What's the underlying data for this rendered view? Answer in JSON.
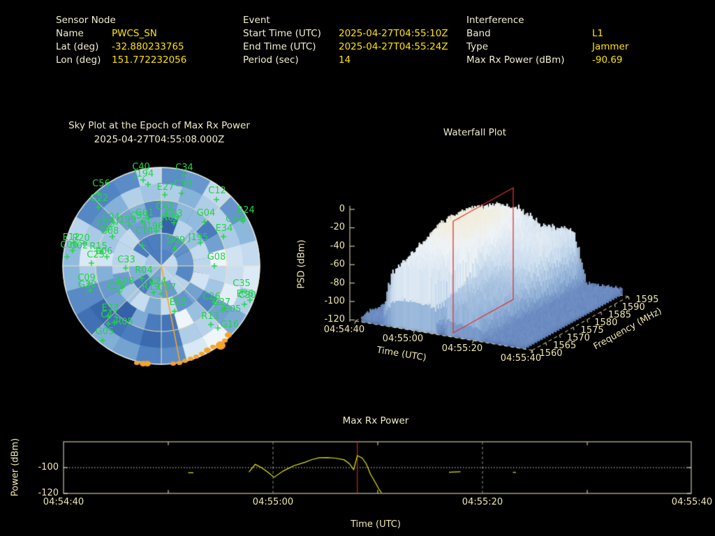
{
  "colors": {
    "background": "#000000",
    "label": "#f2efd0",
    "value": "#ffe400",
    "axis": "#efe8b0",
    "satellite_green": "#22d348",
    "jammer_orange": "#f7a426",
    "slice_red": "#e03131",
    "trace_yellow": "#e8e800",
    "grid_gray": "#8a8a8a"
  },
  "header": {
    "sensor": {
      "title": "Sensor Node",
      "rows": [
        {
          "label": "Name",
          "value": "PWCS_SN"
        },
        {
          "label": "Lat (deg)",
          "value": "-32.880233765"
        },
        {
          "label": "Lon (deg)",
          "value": "151.772232056"
        }
      ]
    },
    "event": {
      "title": "Event",
      "rows": [
        {
          "label": "Start Time (UTC)",
          "value": "2025-04-27T04:55:10Z"
        },
        {
          "label": "End Time (UTC)",
          "value": "2025-04-27T04:55:24Z"
        },
        {
          "label": "Period (sec)",
          "value": "14"
        }
      ]
    },
    "interference": {
      "title": "Interference",
      "rows": [
        {
          "label": "Band",
          "value": "L1"
        },
        {
          "label": "Type",
          "value": "Jammer"
        },
        {
          "label": "Max Rx Power (dBm)",
          "value": "-90.69"
        }
      ]
    }
  },
  "chart_data": [
    {
      "id": "skyplot",
      "type": "heatmap",
      "title": "Sky Plot at the Epoch of Max Rx Power",
      "subtitle": "2025-04-27T04:55:08.000Z",
      "elevation_rings_deg": [
        0,
        30,
        60,
        90
      ],
      "azimuth_spokes_deg": 45,
      "satellites": [
        [
          "C40",
          202,
          240,
          205,
          258
        ],
        [
          "J194",
          206,
          250,
          212,
          264
        ],
        [
          "C34",
          264,
          241,
          263,
          251
        ],
        [
          "C50",
          262,
          264,
          260,
          277
        ],
        [
          "E27",
          237,
          269,
          236,
          279
        ],
        [
          "C12",
          311,
          274,
          310,
          286
        ],
        [
          "R24",
          352,
          302,
          350,
          314
        ],
        [
          "C44",
          336,
          315,
          348,
          317
        ],
        [
          "E34",
          321,
          328,
          320,
          339
        ],
        [
          "G04",
          295,
          306,
          293,
          318
        ],
        [
          "C42",
          236,
          297,
          239,
          306
        ],
        [
          "C03",
          249,
          307,
          254,
          311
        ],
        [
          "R03",
          244,
          313,
          249,
          319
        ],
        [
          "G01",
          207,
          306,
          212,
          313
        ],
        [
          "C59",
          199,
          310,
          204,
          317
        ],
        [
          "C56",
          145,
          264,
          141,
          277
        ],
        [
          "G22",
          142,
          285,
          141,
          297
        ],
        [
          "J199",
          181,
          316,
          185,
          323
        ],
        [
          "C04",
          159,
          312,
          163,
          319
        ],
        [
          "C02",
          151,
          322,
          155,
          329
        ],
        [
          "G08",
          157,
          332,
          161,
          339
        ],
        [
          "C14",
          207,
          332,
          204,
          352
        ],
        [
          "J196",
          220,
          325,
          224,
          331
        ],
        [
          "G09",
          252,
          345,
          250,
          356
        ],
        [
          "J195",
          284,
          341,
          287,
          348
        ],
        [
          "G08",
          310,
          369,
          307,
          381
        ],
        [
          "E12",
          102,
          341,
          106,
          348
        ],
        [
          "R20",
          116,
          342,
          120,
          349
        ],
        [
          "C06",
          99,
          352,
          104,
          359
        ],
        [
          "G02",
          113,
          353,
          96,
          368
        ],
        [
          "R15",
          141,
          354,
          145,
          361
        ],
        [
          "E06",
          149,
          361,
          153,
          368
        ],
        [
          "C25",
          137,
          366,
          131,
          377
        ],
        [
          "C33",
          181,
          373,
          180,
          384
        ],
        [
          "R04",
          206,
          388,
          203,
          399
        ],
        [
          "C24",
          226,
          404,
          218,
          404
        ],
        [
          "E08",
          180,
          404,
          175,
          412
        ],
        [
          "R19",
          216,
          412,
          220,
          419
        ],
        [
          "G07",
          239,
          413,
          231,
          421
        ],
        [
          "C09",
          124,
          399,
          128,
          406
        ],
        [
          "G20",
          125,
          409,
          129,
          416
        ],
        [
          "C39",
          166,
          411,
          171,
          418
        ],
        [
          "E33",
          158,
          442,
          155,
          453
        ],
        [
          "C41",
          157,
          452,
          155,
          464
        ],
        [
          "R05",
          178,
          462,
          164,
          462
        ],
        [
          "G05",
          150,
          476,
          147,
          488
        ],
        [
          "E03",
          255,
          434,
          250,
          446
        ],
        [
          "C35",
          346,
          407,
          347,
          418
        ],
        [
          "E36",
          351,
          422,
          350,
          436
        ],
        [
          "C30",
          354,
          424,
          358,
          430
        ],
        [
          "C26",
          303,
          426,
          307,
          433
        ],
        [
          "G27",
          317,
          434,
          321,
          441
        ],
        [
          "E05",
          333,
          444,
          319,
          444
        ],
        [
          "R13",
          301,
          454,
          302,
          465
        ],
        [
          "G16",
          329,
          466,
          312,
          470
        ]
      ],
      "jammer_track": {
        "from": [
          231,
          381
        ],
        "to": [
          258,
          521
        ]
      },
      "jammer_dots": [
        [
          196,
          520,
          3
        ],
        [
          205,
          521,
          4
        ],
        [
          211,
          521,
          4
        ],
        [
          248,
          521,
          3
        ],
        [
          257,
          520,
          3
        ],
        [
          265,
          517,
          3
        ],
        [
          273,
          514,
          3
        ],
        [
          281,
          511,
          3
        ],
        [
          289,
          507,
          3
        ],
        [
          297,
          502,
          4
        ],
        [
          305,
          497,
          3
        ],
        [
          316,
          495,
          6
        ],
        [
          322,
          488,
          3
        ],
        [
          327,
          480,
          4
        ]
      ]
    },
    {
      "id": "waterfall",
      "type": "surface",
      "title": "Waterfall Plot",
      "zlabel": "PSD (dBm)",
      "zticks": [
        0,
        -20,
        -40,
        -60,
        -80,
        -100,
        -120
      ],
      "xlabel": "Time (UTC)",
      "xticks": [
        "04:54:40",
        "04:55:00",
        "04:55:20",
        "04:55:40"
      ],
      "xticks_sec": [
        0,
        20,
        40,
        60
      ],
      "ylabel": "Frequency (MHz)",
      "yticks": [
        1560,
        1565,
        1570,
        1575,
        1580,
        1585,
        1590,
        1595
      ],
      "slice_time": "04:55:08"
    },
    {
      "id": "power",
      "type": "line",
      "title": "Max Rx Power",
      "ylabel": "Power (dBm)",
      "xlabel": "Time (UTC)",
      "yticks": [
        -100,
        -120
      ],
      "ylim": [
        -120,
        -80
      ],
      "xticks": [
        "04:54:40",
        "04:55:00",
        "04:55:20",
        "04:55:40"
      ],
      "xticks_sec": [
        0,
        20,
        40,
        60
      ],
      "x_span_sec": 60,
      "gridline_sec": [
        20,
        40
      ],
      "minor_tick_sec": [
        10,
        30,
        50
      ],
      "ref_line_dbm": -100,
      "marker": {
        "time_sec": 28.05,
        "value_dbm": -90.69
      },
      "segments": [
        [
          [
            11.9,
            -104
          ],
          [
            12.4,
            -104
          ]
        ],
        [
          [
            17.7,
            -103.5
          ],
          [
            18.3,
            -97.5
          ],
          [
            18.9,
            -100
          ],
          [
            19.5,
            -103.5
          ],
          [
            20.1,
            -107.5
          ],
          [
            21.0,
            -102.5
          ],
          [
            22.0,
            -98.5
          ],
          [
            23.0,
            -96.0
          ],
          [
            23.7,
            -93.8
          ],
          [
            24.4,
            -92.4
          ],
          [
            25.2,
            -92.2
          ],
          [
            26.0,
            -92.7
          ],
          [
            26.8,
            -94.0
          ],
          [
            27.3,
            -97.0
          ],
          [
            27.7,
            -101.5
          ],
          [
            28.05,
            -90.69
          ],
          [
            28.5,
            -92.5
          ],
          [
            28.9,
            -97.0
          ],
          [
            29.3,
            -105.0
          ],
          [
            29.7,
            -110.5
          ],
          [
            30.1,
            -116.5
          ],
          [
            30.35,
            -119.5
          ]
        ],
        [
          [
            36.8,
            -103.6
          ],
          [
            37.9,
            -103.2
          ]
        ],
        [
          [
            42.9,
            -103.7
          ],
          [
            43.2,
            -103.7
          ]
        ]
      ]
    }
  ]
}
